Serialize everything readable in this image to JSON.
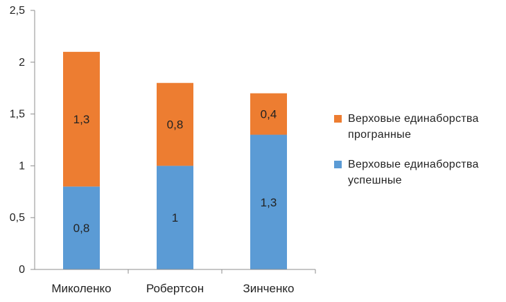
{
  "chart_data": {
    "type": "bar",
    "stacked": true,
    "categories": [
      "Миколенко",
      "Робертсон",
      "Зинченко"
    ],
    "series": [
      {
        "name": "Верховые единаборства успешные",
        "values": [
          0.8,
          1,
          1.3
        ],
        "labels": [
          "0,8",
          "1",
          "1,3"
        ],
        "color": "#5b9bd5"
      },
      {
        "name": "Верховые единаборства програнные",
        "values": [
          1.3,
          0.8,
          0.4
        ],
        "labels": [
          "1,3",
          "0,8",
          "0,4"
        ],
        "color": "#ed7d31"
      }
    ],
    "ylim": [
      0,
      2.5
    ],
    "y_ticks": [
      "0",
      "0,5",
      "1",
      "1,5",
      "2",
      "2,5"
    ],
    "grid": false,
    "legend_position": "right",
    "xlabel": "",
    "ylabel": "",
    "title": ""
  }
}
